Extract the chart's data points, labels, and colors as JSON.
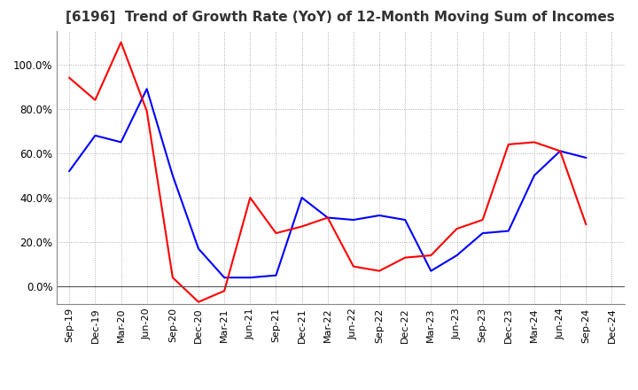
{
  "title": "[6196]  Trend of Growth Rate (YoY) of 12-Month Moving Sum of Incomes",
  "title_fontsize": 11,
  "background_color": "#ffffff",
  "grid_color": "#aaaaaa",
  "ylim_low": -0.08,
  "ylim_high": 1.15,
  "yticks": [
    0.0,
    0.2,
    0.4,
    0.6,
    0.8,
    1.0
  ],
  "ytick_labels": [
    "0.0%",
    "20.0%",
    "40.0%",
    "60.0%",
    "80.0%",
    "100.0%"
  ],
  "x_labels": [
    "Sep-19",
    "Dec-19",
    "Mar-20",
    "Jun-20",
    "Sep-20",
    "Dec-20",
    "Mar-21",
    "Jun-21",
    "Sep-21",
    "Dec-21",
    "Mar-22",
    "Jun-22",
    "Sep-22",
    "Dec-22",
    "Mar-23",
    "Jun-23",
    "Sep-23",
    "Dec-23",
    "Mar-24",
    "Jun-24",
    "Sep-24",
    "Dec-24"
  ],
  "ordinary_income": [
    0.52,
    0.68,
    0.65,
    0.89,
    0.5,
    0.17,
    0.04,
    0.04,
    0.05,
    0.4,
    0.31,
    0.3,
    0.32,
    0.3,
    0.07,
    0.14,
    0.24,
    0.25,
    0.5,
    0.61,
    0.58,
    null
  ],
  "net_income": [
    0.94,
    0.84,
    1.1,
    0.79,
    0.04,
    -0.07,
    -0.02,
    0.4,
    0.24,
    0.27,
    0.31,
    0.09,
    0.07,
    0.13,
    0.14,
    0.26,
    0.3,
    0.64,
    0.65,
    0.61,
    0.28,
    null
  ],
  "ordinary_color": "#0000ff",
  "net_color": "#ff0000",
  "line_width": 1.5,
  "tick_fontsize": 8,
  "ytick_fontsize": 8.5
}
